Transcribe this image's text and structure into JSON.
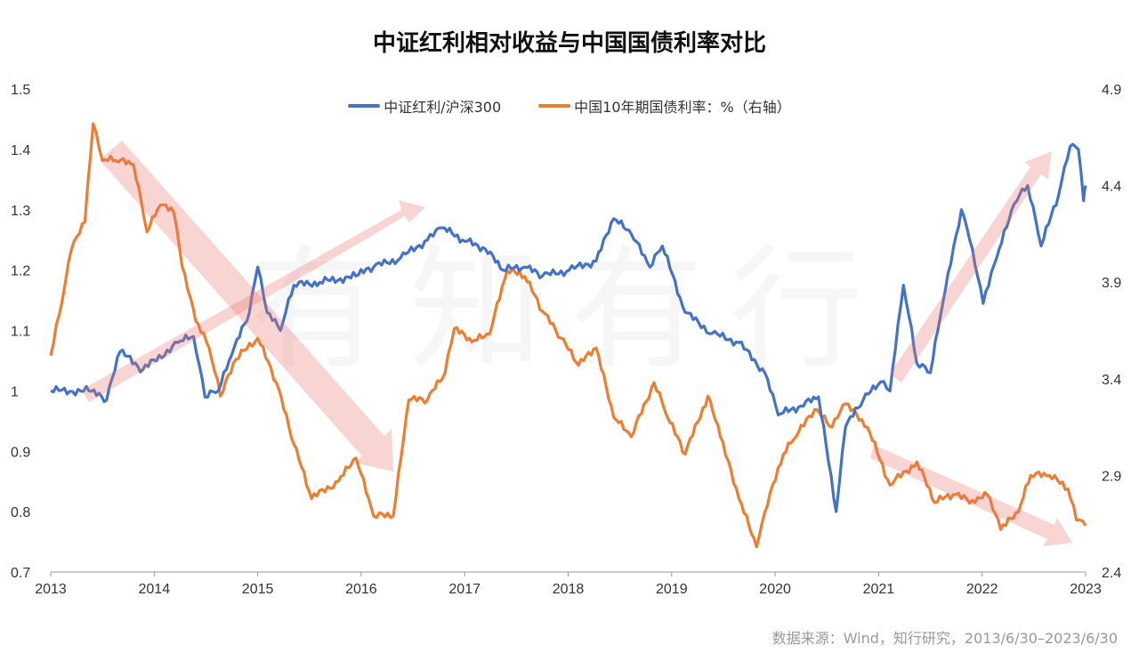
{
  "chart_data": {
    "type": "line",
    "title": "中证红利相对收益与中国国债利率对比",
    "x_ticks": [
      "2013",
      "2014",
      "2015",
      "2016",
      "2017",
      "2018",
      "2019",
      "2020",
      "2021",
      "2022",
      "2023"
    ],
    "xlim": [
      2013,
      2023
    ],
    "left_axis": {
      "ylim": [
        0.7,
        1.5
      ],
      "ticks": [
        "0.7",
        "0.8",
        "0.9",
        "1",
        "1.1",
        "1.2",
        "1.3",
        "1.4",
        "1.5"
      ]
    },
    "right_axis": {
      "ylim": [
        2.4,
        4.9
      ],
      "ticks": [
        "2.4",
        "2.9",
        "3.4",
        "3.9",
        "4.4",
        "4.9"
      ]
    },
    "legend_position": "top-center",
    "series": [
      {
        "name": "中证红利/沪深300",
        "axis": "left",
        "color": "#4472C4",
        "x": [
          2013.0,
          2013.37,
          2013.54,
          2013.67,
          2013.89,
          2014.23,
          2014.38,
          2014.49,
          2014.62,
          2014.75,
          2014.92,
          2015.0,
          2015.09,
          2015.22,
          2015.35,
          2015.6,
          2015.95,
          2016.12,
          2016.38,
          2016.64,
          2016.78,
          2016.98,
          2017.2,
          2017.37,
          2017.58,
          2017.75,
          2018.01,
          2018.27,
          2018.44,
          2018.61,
          2018.79,
          2018.91,
          2019.13,
          2019.39,
          2019.65,
          2019.9,
          2020.03,
          2020.25,
          2020.42,
          2020.59,
          2020.68,
          2020.85,
          2021.02,
          2021.11,
          2021.24,
          2021.37,
          2021.5,
          2021.62,
          2021.8,
          2021.88,
          2022.01,
          2022.14,
          2022.31,
          2022.44,
          2022.57,
          2022.74,
          2022.85,
          2022.93,
          2022.98,
          2023.0
        ],
        "y": [
          1.0,
          1.0,
          0.985,
          1.065,
          1.035,
          1.08,
          1.09,
          0.99,
          1.0,
          1.06,
          1.13,
          1.205,
          1.13,
          1.1,
          1.175,
          1.18,
          1.19,
          1.205,
          1.22,
          1.25,
          1.27,
          1.25,
          1.235,
          1.2,
          1.205,
          1.19,
          1.2,
          1.215,
          1.285,
          1.26,
          1.205,
          1.24,
          1.13,
          1.095,
          1.08,
          1.03,
          0.96,
          0.975,
          0.99,
          0.8,
          0.94,
          0.985,
          1.015,
          1.0,
          1.175,
          1.045,
          1.03,
          1.145,
          1.3,
          1.25,
          1.145,
          1.22,
          1.31,
          1.34,
          1.24,
          1.325,
          1.405,
          1.4,
          1.315,
          1.34
        ]
      },
      {
        "name": "中国10年期国债利率：%（右轴）",
        "axis": "right",
        "color": "#ED7D31",
        "x": [
          2013.0,
          2013.11,
          2013.2,
          2013.33,
          2013.41,
          2013.5,
          2013.63,
          2013.8,
          2013.93,
          2014.06,
          2014.19,
          2014.27,
          2014.4,
          2014.53,
          2014.64,
          2014.79,
          2015.0,
          2015.18,
          2015.35,
          2015.52,
          2015.78,
          2015.95,
          2016.12,
          2016.31,
          2016.46,
          2016.64,
          2016.81,
          2016.9,
          2017.07,
          2017.24,
          2017.41,
          2017.58,
          2017.75,
          2017.93,
          2018.1,
          2018.27,
          2018.44,
          2018.61,
          2018.83,
          2018.96,
          2019.13,
          2019.35,
          2019.47,
          2019.65,
          2019.82,
          2019.9,
          2020.08,
          2020.2,
          2020.38,
          2020.55,
          2020.68,
          2020.89,
          2021.11,
          2021.37,
          2021.54,
          2021.72,
          2021.93,
          2022.05,
          2022.18,
          2022.35,
          2022.47,
          2022.65,
          2022.83,
          2022.91,
          2023.0
        ],
        "y": [
          3.52,
          3.8,
          4.07,
          4.21,
          4.72,
          4.53,
          4.53,
          4.51,
          4.16,
          4.3,
          4.26,
          3.98,
          3.7,
          3.56,
          3.31,
          3.5,
          3.61,
          3.38,
          3.06,
          2.78,
          2.87,
          2.99,
          2.69,
          2.69,
          3.29,
          3.29,
          3.43,
          3.66,
          3.59,
          3.63,
          3.96,
          3.93,
          3.75,
          3.61,
          3.47,
          3.56,
          3.2,
          3.1,
          3.38,
          3.2,
          3.01,
          3.31,
          3.1,
          2.78,
          2.53,
          2.71,
          3.01,
          3.1,
          3.24,
          3.15,
          3.27,
          3.15,
          2.85,
          2.97,
          2.76,
          2.8,
          2.76,
          2.8,
          2.62,
          2.71,
          2.9,
          2.9,
          2.83,
          2.67,
          2.64
        ]
      }
    ],
    "watermark": "有知有行"
  },
  "source": "数据来源：Wind，知行研究，2013/6/30–2023/6/30"
}
